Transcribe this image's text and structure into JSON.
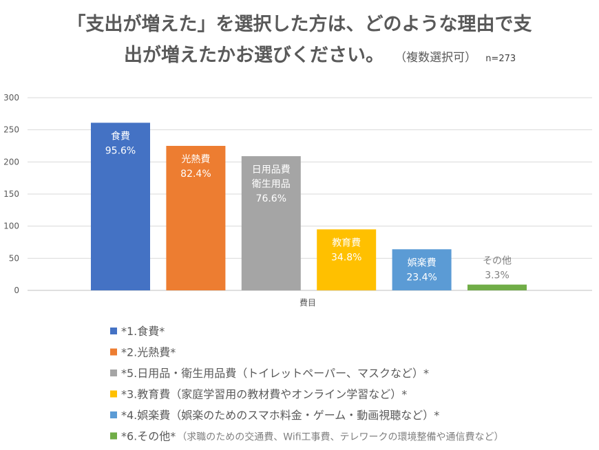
{
  "title": {
    "line1": "「支出が増えた」を選択した方は、どのような理由で支",
    "line2": "出が増えたかお選びください。",
    "note": "（複数選択可）",
    "n": "n=273"
  },
  "chart_data": {
    "type": "bar",
    "xlabel": "費目",
    "ylabel": "",
    "ylim": [
      0,
      300
    ],
    "yticks": [
      0,
      50,
      100,
      150,
      200,
      250,
      300
    ],
    "grid": true,
    "legend_position": "bottom",
    "categories": [
      "*1.食費*",
      "*2.光熱費*",
      "*5.日用品・衛生用品費（トイレットペーパー、マスクなど）*",
      "*3.教育費（家庭学習用の教材費やオンライン学習など）*",
      "*4.娯楽費（娯楽のためのスマホ料金・ゲーム・動画視聴など）*",
      "*6.その他*"
    ],
    "series": [
      {
        "name": "*1.食費*",
        "value": 261,
        "label_lines": [
          "食費",
          "95.6%"
        ],
        "color": "#4472C4"
      },
      {
        "name": "*2.光熱費*",
        "value": 225,
        "label_lines": [
          "光熱費",
          "82.4%"
        ],
        "color": "#ED7D31"
      },
      {
        "name": "*5.日用品・衛生用品費（トイレットペーパー、マスクなど）*",
        "value": 209,
        "label_lines": [
          "日用品費",
          "衛生用品",
          "76.6%"
        ],
        "color": "#A5A5A5"
      },
      {
        "name": "*3.教育費（家庭学習用の教材費やオンライン学習など）*",
        "value": 95,
        "label_lines": [
          "教育費",
          "34.8%"
        ],
        "color": "#FFC000"
      },
      {
        "name": "*4.娯楽費（娯楽のためのスマホ料金・ゲーム・動画視聴など）*",
        "value": 64,
        "label_lines": [
          "娯楽費",
          "23.4%"
        ],
        "color": "#5B9BD5"
      },
      {
        "name": "*6.その他*",
        "name_note": "（求職のための交通費、Wifi工事費、テレワークの環境整備や通信費など）",
        "value": 9,
        "label_lines": [
          "その他",
          "3.3%"
        ],
        "color": "#70AD47"
      }
    ]
  }
}
